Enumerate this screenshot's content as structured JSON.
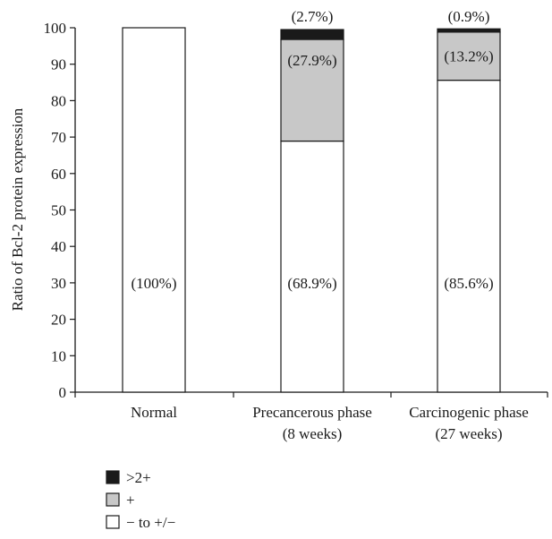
{
  "chart_data": {
    "type": "bar",
    "stacked": true,
    "ylabel": "Ratio of Bcl-2 protein expression",
    "xlabel": "",
    "ylim": [
      0,
      100
    ],
    "yticks": [
      0,
      10,
      20,
      30,
      40,
      50,
      60,
      70,
      80,
      90,
      100
    ],
    "categories": [
      [
        "Normal"
      ],
      [
        "Precancerous phase",
        "(8 weeks)"
      ],
      [
        "Carcinogenic phase",
        "(27 weeks)"
      ]
    ],
    "series": [
      {
        "name": "− to +/−",
        "color": "#ffffff",
        "values": [
          100,
          68.9,
          85.6
        ],
        "labels": [
          "(100%)",
          "(68.9%)",
          "(85.6%)"
        ]
      },
      {
        "name": "+",
        "color": "#c8c8c8",
        "values": [
          0,
          27.9,
          13.2
        ],
        "labels": [
          "",
          "(27.9%)",
          "(13.2%)"
        ]
      },
      {
        "name": ">2+",
        "color": "#1a1a1a",
        "values": [
          0,
          2.7,
          0.9
        ],
        "labels": [
          "",
          "(2.7%)",
          "(0.9%)"
        ]
      }
    ],
    "legend_placement": "bottom-left",
    "grid": false
  }
}
